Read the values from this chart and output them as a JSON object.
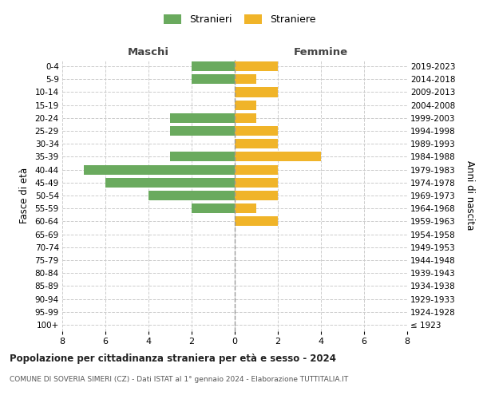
{
  "age_groups": [
    "100+",
    "95-99",
    "90-94",
    "85-89",
    "80-84",
    "75-79",
    "70-74",
    "65-69",
    "60-64",
    "55-59",
    "50-54",
    "45-49",
    "40-44",
    "35-39",
    "30-34",
    "25-29",
    "20-24",
    "15-19",
    "10-14",
    "5-9",
    "0-4"
  ],
  "birth_years": [
    "≤ 1923",
    "1924-1928",
    "1929-1933",
    "1934-1938",
    "1939-1943",
    "1944-1948",
    "1949-1953",
    "1954-1958",
    "1959-1963",
    "1964-1968",
    "1969-1973",
    "1974-1978",
    "1979-1983",
    "1984-1988",
    "1989-1993",
    "1994-1998",
    "1999-2003",
    "2004-2008",
    "2009-2013",
    "2014-2018",
    "2019-2023"
  ],
  "maschi": [
    0,
    0,
    0,
    0,
    0,
    0,
    0,
    0,
    0,
    2,
    4,
    6,
    7,
    3,
    0,
    3,
    3,
    0,
    0,
    2,
    2
  ],
  "femmine": [
    0,
    0,
    0,
    0,
    0,
    0,
    0,
    0,
    2,
    1,
    2,
    2,
    2,
    4,
    2,
    2,
    1,
    1,
    2,
    1,
    2
  ],
  "maschi_color": "#6aaa5e",
  "femmine_color": "#f0b429",
  "title": "Popolazione per cittadinanza straniera per età e sesso - 2024",
  "subtitle": "COMUNE DI SOVERIA SIMERI (CZ) - Dati ISTAT al 1° gennaio 2024 - Elaborazione TUTTITALIA.IT",
  "xlabel_left": "Maschi",
  "xlabel_right": "Femmine",
  "ylabel_left": "Fasce di età",
  "ylabel_right": "Anni di nascita",
  "legend_maschi": "Stranieri",
  "legend_femmine": "Straniere",
  "xlim": 8,
  "background_color": "#ffffff",
  "grid_color": "#cccccc"
}
